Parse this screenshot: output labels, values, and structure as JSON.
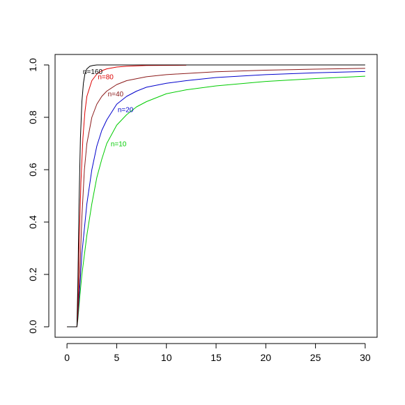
{
  "chart_data": {
    "type": "line",
    "title": "",
    "xlabel": "",
    "ylabel": "",
    "xlim": [
      -1.2,
      31.2
    ],
    "ylim": [
      -0.04,
      1.04
    ],
    "grid": false,
    "legend": "none",
    "x_ticks": [
      {
        "value": 0,
        "label": "0"
      },
      {
        "value": 5,
        "label": "5"
      },
      {
        "value": 10,
        "label": "10"
      },
      {
        "value": 15,
        "label": "15"
      },
      {
        "value": 20,
        "label": "20"
      },
      {
        "value": 25,
        "label": "25"
      },
      {
        "value": 30,
        "label": "30"
      }
    ],
    "y_ticks": [
      {
        "value": 0.0,
        "label": "0.0"
      },
      {
        "value": 0.2,
        "label": "0.2"
      },
      {
        "value": 0.4,
        "label": "0.4"
      },
      {
        "value": 0.6,
        "label": "0.6"
      },
      {
        "value": 0.8,
        "label": "0.8"
      },
      {
        "value": 1.0,
        "label": "1.0"
      }
    ],
    "series": [
      {
        "name": "n=10",
        "color": "#00cc00",
        "label_at": [
          4.4,
          0.69
        ],
        "x": [
          0,
          1.0,
          1.1,
          1.3,
          1.5,
          2,
          2.5,
          3,
          3.5,
          4,
          5,
          6,
          7,
          8,
          10,
          12,
          15,
          20,
          25,
          30
        ],
        "y": [
          0,
          0,
          0.03,
          0.12,
          0.2,
          0.35,
          0.47,
          0.57,
          0.64,
          0.7,
          0.77,
          0.81,
          0.84,
          0.86,
          0.89,
          0.905,
          0.92,
          0.937,
          0.948,
          0.957
        ]
      },
      {
        "name": "n=20",
        "color": "#0000cc",
        "label_at": [
          5.1,
          0.82
        ],
        "x": [
          0,
          1.0,
          1.1,
          1.3,
          1.5,
          2,
          2.5,
          3,
          3.5,
          4,
          5,
          6,
          7,
          8,
          10,
          12,
          15,
          20,
          25,
          30
        ],
        "y": [
          0,
          0,
          0.04,
          0.16,
          0.28,
          0.47,
          0.6,
          0.69,
          0.75,
          0.79,
          0.85,
          0.88,
          0.9,
          0.915,
          0.93,
          0.94,
          0.952,
          0.963,
          0.97,
          0.975
        ]
      },
      {
        "name": "n=40",
        "color": "#8b1a1a",
        "label_at": [
          4.1,
          0.88
        ],
        "x": [
          0,
          1.0,
          1.1,
          1.3,
          1.5,
          1.75,
          2,
          2.5,
          3,
          3.5,
          4,
          5,
          6,
          8,
          10,
          15,
          20,
          25,
          30
        ],
        "y": [
          0,
          0,
          0.05,
          0.22,
          0.42,
          0.6,
          0.7,
          0.8,
          0.85,
          0.88,
          0.9,
          0.925,
          0.94,
          0.955,
          0.963,
          0.974,
          0.98,
          0.984,
          0.987
        ]
      },
      {
        "name": "n=80",
        "color": "#dd0000",
        "label_at": [
          3.1,
          0.945
        ],
        "x": [
          0,
          1.0,
          1.1,
          1.25,
          1.4,
          1.6,
          1.8,
          2,
          2.5,
          3,
          3.5,
          4,
          5,
          6,
          8,
          12
        ],
        "y": [
          0,
          0,
          0.1,
          0.35,
          0.55,
          0.72,
          0.82,
          0.88,
          0.94,
          0.965,
          0.978,
          0.985,
          0.992,
          0.995,
          0.998,
          0.999
        ]
      },
      {
        "name": "n=160",
        "color": "#000000",
        "label_at": [
          1.6,
          0.965
        ],
        "x": [
          0,
          1.0,
          1.1,
          1.2,
          1.35,
          1.5,
          1.65,
          1.8,
          2,
          2.3,
          2.6,
          3,
          4,
          6,
          10,
          15,
          20,
          30
        ],
        "y": [
          0,
          0,
          0.18,
          0.45,
          0.72,
          0.86,
          0.93,
          0.965,
          0.985,
          0.995,
          0.998,
          1.0,
          1.0,
          1.0,
          1.0,
          1.0,
          1.0,
          1.0
        ]
      }
    ]
  }
}
